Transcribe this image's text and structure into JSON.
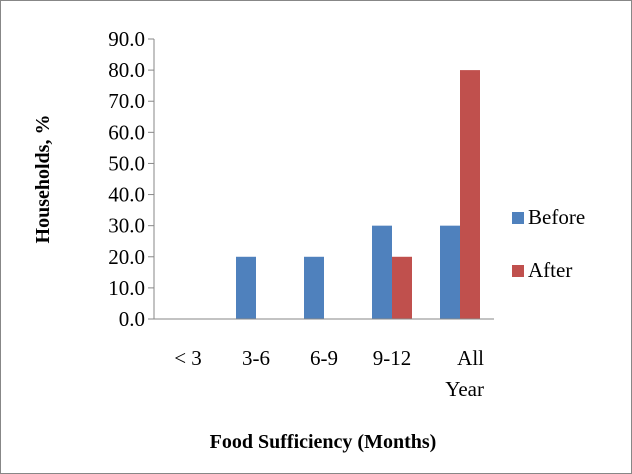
{
  "chart_data": {
    "type": "bar",
    "title": "",
    "xlabel": "Food Sufficiency (Months)",
    "ylabel": "Households, %",
    "categories": [
      [
        "< 3"
      ],
      [
        "3-6"
      ],
      [
        "6-9"
      ],
      [
        "9-12"
      ],
      [
        "All",
        "Year"
      ]
    ],
    "series": [
      {
        "name": "Before",
        "color": "#4f81bd",
        "values": [
          0,
          20,
          20,
          30,
          30
        ]
      },
      {
        "name": "After",
        "color": "#c0504d",
        "values": [
          0,
          0,
          0,
          20,
          80
        ]
      }
    ],
    "ylim": [
      0,
      90
    ],
    "yticks": [
      "0.0",
      "10.0",
      "20.0",
      "30.0",
      "40.0",
      "50.0",
      "60.0",
      "70.0",
      "80.0",
      "90.0"
    ],
    "grid": false,
    "legend_position": "right"
  }
}
